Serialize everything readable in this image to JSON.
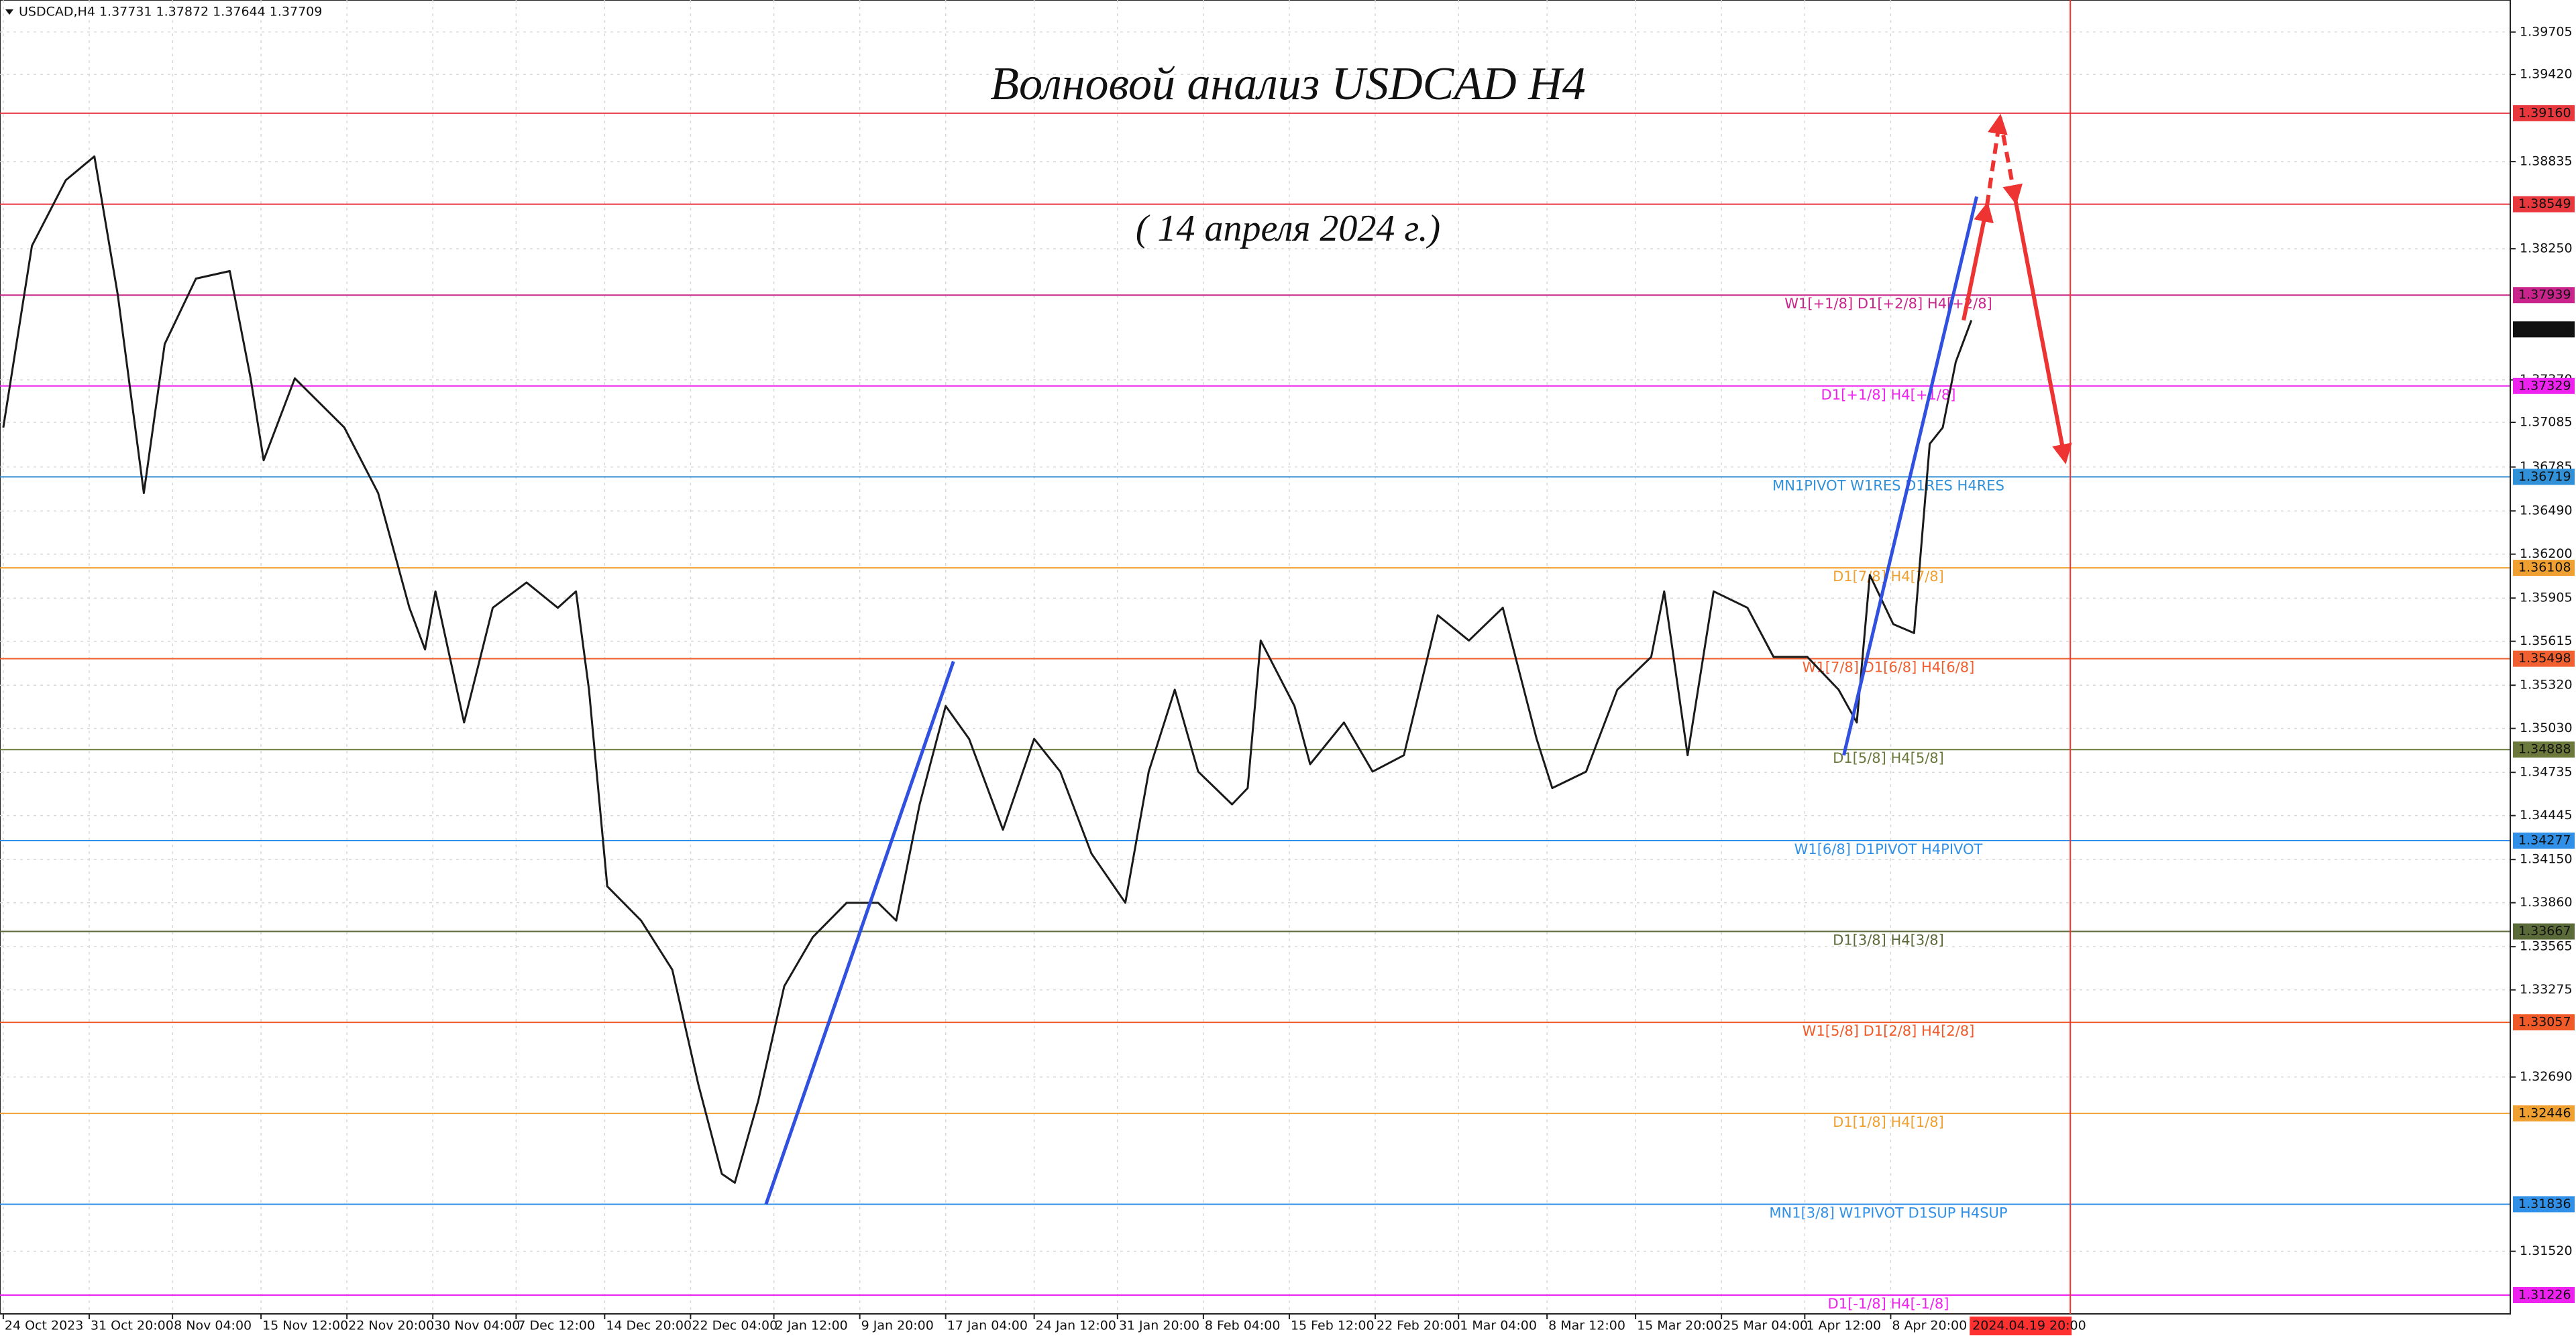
{
  "chart_data": {
    "type": "line",
    "header": "USDCAD,H4  1.37731 1.37872 1.37644 1.37709",
    "title": "Волновой анализ USDCAD H4",
    "subtitle": "( 14 апреля 2024 г.)",
    "color": "#1a1a1a",
    "grid": true,
    "x": [
      0,
      11,
      24,
      35,
      44,
      54,
      62,
      74,
      87,
      95,
      100,
      112,
      131,
      144,
      156,
      162,
      166,
      177,
      188,
      201,
      213,
      220,
      225,
      232,
      245,
      257,
      267,
      276,
      281,
      290,
      300,
      311,
      324,
      336,
      343,
      352,
      362,
      371,
      384,
      396,
      406,
      418,
      431,
      440,
      450,
      459,
      472,
      478,
      483,
      496,
      502,
      515,
      526,
      538,
      551,
      563,
      576,
      589,
      595,
      608,
      620,
      633,
      638,
      647,
      657,
      670,
      680,
      693,
      705,
      712,
      717,
      726,
      734,
      740,
      745,
      750,
      756
    ],
    "values": [
      1.3705,
      1.3827,
      1.3871,
      1.3887,
      1.3794,
      1.3661,
      1.3761,
      1.3805,
      1.381,
      1.3738,
      1.3683,
      1.3738,
      1.3705,
      1.3661,
      1.3584,
      1.3556,
      1.3595,
      1.3507,
      1.3584,
      1.3601,
      1.3584,
      1.3595,
      1.3529,
      1.3397,
      1.3374,
      1.3341,
      1.3264,
      1.3204,
      1.3198,
      1.3253,
      1.333,
      1.3363,
      1.3386,
      1.3386,
      1.3374,
      1.3452,
      1.3518,
      1.3496,
      1.3435,
      1.3496,
      1.3474,
      1.3419,
      1.3386,
      1.3474,
      1.3529,
      1.3474,
      1.3452,
      1.3463,
      1.3562,
      1.3518,
      1.3479,
      1.3507,
      1.3474,
      1.3485,
      1.3579,
      1.3562,
      1.3584,
      1.3496,
      1.3463,
      1.3474,
      1.3529,
      1.3551,
      1.3595,
      1.3485,
      1.3595,
      1.3584,
      1.3551,
      1.3551,
      1.3529,
      1.3507,
      1.3606,
      1.3573,
      1.3567,
      1.3694,
      1.3705,
      1.3749,
      1.3777
    ],
    "xlim": [
      -1.26,
      963
    ],
    "ylim": [
      1.311,
      1.3992
    ],
    "xticks": [
      {
        "value": 0,
        "label": "24 Oct 2023"
      },
      {
        "value": 33,
        "label": "31 Oct 20:00"
      },
      {
        "value": 65,
        "label": "8 Nov 04:00"
      },
      {
        "value": 99,
        "label": "15 Nov 12:00"
      },
      {
        "value": 132,
        "label": "22 Nov 20:00"
      },
      {
        "value": 165,
        "label": "30 Nov 04:00"
      },
      {
        "value": 197,
        "label": "7 Dec 12:00"
      },
      {
        "value": 231,
        "label": "14 Dec 20:00"
      },
      {
        "value": 264,
        "label": "22 Dec 04:00"
      },
      {
        "value": 296,
        "label": "2 Jan 12:00"
      },
      {
        "value": 329,
        "label": "9 Jan 20:00"
      },
      {
        "value": 362,
        "label": "17 Jan 04:00"
      },
      {
        "value": 396,
        "label": "24 Jan 12:00"
      },
      {
        "value": 428,
        "label": "31 Jan 20:00"
      },
      {
        "value": 461,
        "label": "8 Feb 04:00"
      },
      {
        "value": 494,
        "label": "15 Feb 12:00"
      },
      {
        "value": 527,
        "label": "22 Feb 20:00"
      },
      {
        "value": 559,
        "label": "1 Mar 04:00"
      },
      {
        "value": 593,
        "label": "8 Mar 12:00"
      },
      {
        "value": 627,
        "label": "15 Mar 20:00"
      },
      {
        "value": 660,
        "label": "25 Mar 04:00"
      },
      {
        "value": 692,
        "label": "1 Apr 12:00"
      },
      {
        "value": 725,
        "label": "8 Apr 20:00"
      }
    ],
    "yticks": [
      {
        "value": 1.39705,
        "label": "1.39705"
      },
      {
        "value": 1.3942,
        "label": "1.39420"
      },
      {
        "value": 1.38835,
        "label": "1.38835"
      },
      {
        "value": 1.3825,
        "label": "1.38250"
      },
      {
        "value": 1.3737,
        "label": "1.37370"
      },
      {
        "value": 1.37085,
        "label": "1.37085"
      },
      {
        "value": 1.36785,
        "label": "1.36785"
      },
      {
        "value": 1.3649,
        "label": "1.36490"
      },
      {
        "value": 1.362,
        "label": "1.36200"
      },
      {
        "value": 1.35905,
        "label": "1.35905"
      },
      {
        "value": 1.35615,
        "label": "1.35615"
      },
      {
        "value": 1.3532,
        "label": "1.35320"
      },
      {
        "value": 1.3503,
        "label": "1.35030"
      },
      {
        "value": 1.34735,
        "label": "1.34735"
      },
      {
        "value": 1.34445,
        "label": "1.34445"
      },
      {
        "value": 1.3415,
        "label": "1.34150"
      },
      {
        "value": 1.3386,
        "label": "1.33860"
      },
      {
        "value": 1.33565,
        "label": "1.33565"
      },
      {
        "value": 1.33275,
        "label": "1.33275"
      },
      {
        "value": 1.3269,
        "label": "1.32690"
      },
      {
        "value": 1.3152,
        "label": "1.31520"
      }
    ],
    "levels": [
      {
        "price": {
          "value": 1.3916,
          "label": "1.39160"
        },
        "color": "#e8383d"
      },
      {
        "price": {
          "value": 1.38549,
          "label": "1.38549"
        },
        "color": "#e8383d"
      },
      {
        "price": {
          "value": 1.37939,
          "label": "1.37939"
        },
        "color": "#c8248c",
        "label": "W1[+1/8] D1[+2/8] H4[+2/8]"
      },
      {
        "price": {
          "value": 1.37329,
          "label": "1.37329"
        },
        "color": "#ee22ee",
        "label": "D1[+1/8] H4[+1/8]"
      },
      {
        "price": {
          "value": 1.36719,
          "label": "1.36719"
        },
        "color": "#3090d8",
        "label": "MN1PIVOT W1RES D1RES H4RES"
      },
      {
        "price": {
          "value": 1.36108,
          "label": "1.36108"
        },
        "color": "#f0a030",
        "label": "D1[7/8] H4[7/8]"
      },
      {
        "price": {
          "value": 1.35498,
          "label": "1.35498"
        },
        "color": "#f06030",
        "label": "W1[7/8] D1[6/8] H4[6/8]"
      },
      {
        "price": {
          "value": 1.34888,
          "label": "1.34888"
        },
        "color": "#6b7a3c",
        "label": "D1[5/8] H4[5/8]"
      },
      {
        "price": {
          "value": 1.34277,
          "label": "1.34277"
        },
        "color": "#3090e8",
        "label": "W1[6/8] D1PIVOT H4PIVOT"
      },
      {
        "price": {
          "value": 1.33667,
          "label": "1.33667"
        },
        "color": "#5a6a38",
        "label": "D1[3/8] H4[3/8]"
      },
      {
        "price": {
          "value": 1.33057,
          "label": "1.33057"
        },
        "color": "#f05a28",
        "label": "W1[5/8] D1[2/8] H4[2/8]"
      },
      {
        "price": {
          "value": 1.32446,
          "label": "1.32446"
        },
        "color": "#f0a030",
        "label": "D1[1/8] H4[1/8]"
      },
      {
        "price": {
          "value": 1.31836,
          "label": "1.31836"
        },
        "color": "#3090e8",
        "label": "MN1[3/8] W1PIVOT D1SUP H4SUP"
      },
      {
        "price": {
          "value": 1.31226,
          "label": "1.31226"
        },
        "color": "#ee22ee",
        "label": "D1[-1/8] H4[-1/8]"
      }
    ],
    "current_price": {
      "value": 1.37709,
      "label": "1.37709"
    },
    "marker": {
      "value": 794,
      "label": "2024.04.19 20:00",
      "color": "#ff3030"
    },
    "waves": [
      {
        "color": "#3050e0",
        "x": [
          293,
          365
        ],
        "y": [
          1.31836,
          1.3548
        ]
      },
      {
        "color": "#3050e0",
        "x": [
          707,
          758
        ],
        "y": [
          1.3485,
          1.386
        ]
      },
      {
        "color": "#ee3333",
        "arrow": true,
        "x": [
          753,
          762
        ],
        "y": [
          1.3777,
          1.3854
        ]
      },
      {
        "color": "#ee3333",
        "arrow": true,
        "dash": true,
        "x": [
          762,
          767
        ],
        "y": [
          1.3854,
          1.3913
        ]
      },
      {
        "color": "#ee3333",
        "arrow": true,
        "dash": true,
        "x": [
          767,
          773
        ],
        "y": [
          1.3913,
          1.3857
        ]
      },
      {
        "color": "#ee3333",
        "arrow": true,
        "x": [
          773,
          792
        ],
        "y": [
          1.3857,
          1.3683
        ]
      }
    ]
  }
}
